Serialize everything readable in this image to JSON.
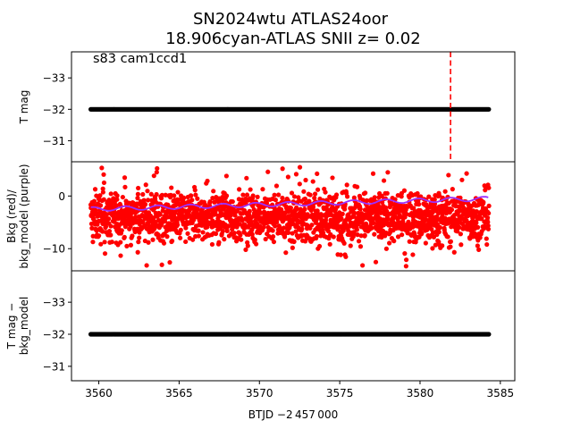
{
  "title_line1": "SN2024wtu  ATLAS24oor",
  "title_line2": "18.906cyan-ATLAS SNII z= 0.02",
  "annotation": "s83 cam1ccd1",
  "xlabel": "BTJD −2 457 000",
  "colors": {
    "points_black": "#000000",
    "bkg_red": "#ff0000",
    "bkg_model": "#9b30ff",
    "vline": "#ff0000"
  },
  "chart_data": [
    {
      "type": "scatter",
      "panel": "top",
      "ylabel": "T mag",
      "xlim": [
        3558.3,
        3585.9
      ],
      "ylim": [
        -30.33,
        -33.83
      ],
      "y_inverted": true,
      "yticks": [
        -33,
        -32,
        -31
      ],
      "ytick_labels": [
        "−33",
        "−32",
        "−31"
      ],
      "series": [
        {
          "x_start": 3559.5,
          "x_end": 3584.3,
          "y": -32.0,
          "color": "#000000"
        }
      ],
      "vline": {
        "x": 3581.9,
        "style": "dashed",
        "color": "#ff0000"
      }
    },
    {
      "type": "scatter",
      "panel": "middle",
      "ylabel": "Bkg (red)/\nbkg_model (purple)",
      "ylabel_lines": [
        "Bkg (red)/",
        "bkg_model (purple)"
      ],
      "xlim": [
        3558.3,
        3585.9
      ],
      "ylim": [
        -14.2,
        6.5
      ],
      "yticks": [
        0,
        -10
      ],
      "ytick_labels": [
        "0",
        "−10"
      ],
      "series": [
        {
          "name": "Bkg",
          "color": "#ff0000",
          "x_start": 3559.5,
          "x_end": 3584.3,
          "center": -4,
          "range": [
            -13.5,
            5.5
          ]
        },
        {
          "name": "bkg_model",
          "color": "#9b30ff",
          "x_start": 3559.5,
          "x_end": 3584.3,
          "y_start": -2.5,
          "y_end": -0.5
        }
      ]
    },
    {
      "type": "scatter",
      "panel": "bottom",
      "ylabel_lines": [
        "T mag −",
        "bkg_model"
      ],
      "xlim": [
        3558.3,
        3585.9
      ],
      "ylim": [
        -30.55,
        -33.98
      ],
      "y_inverted": true,
      "yticks": [
        -33,
        -32,
        -31
      ],
      "ytick_labels": [
        "−33",
        "−32",
        "−31"
      ],
      "xticks": [
        3560,
        3565,
        3570,
        3575,
        3580,
        3585
      ],
      "xtick_labels": [
        "3560",
        "3565",
        "3570",
        "3575",
        "3580",
        "3585"
      ],
      "series": [
        {
          "x_start": 3559.5,
          "x_end": 3584.3,
          "y": -32.0,
          "color": "#000000"
        }
      ]
    }
  ]
}
